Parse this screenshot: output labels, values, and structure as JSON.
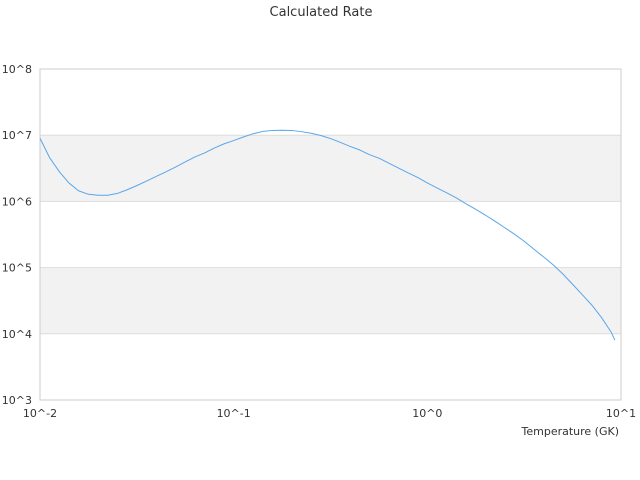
{
  "chart_data": {
    "type": "line",
    "title": "Calculated Rate",
    "xlabel": "Temperature (GK)",
    "ylabel": "",
    "x_scale": "log",
    "y_scale": "log",
    "xlim": [
      0.01,
      10
    ],
    "ylim": [
      1000,
      100000000
    ],
    "x_ticks": [
      "10^-2",
      "10^-1",
      "10^0",
      "10^1"
    ],
    "y_ticks": [
      "10^3",
      "10^4",
      "10^5",
      "10^6",
      "10^7",
      "10^8"
    ],
    "grid": "alternating horizontal bands",
    "legend": "none",
    "colors": {
      "line": "#5aa6ea",
      "band": "#f2f2f2",
      "gridline": "#dddddd"
    },
    "series": [
      {
        "x": [
          0.01,
          0.0112,
          0.0126,
          0.0141,
          0.0158,
          0.0178,
          0.02,
          0.0224,
          0.0251,
          0.0282,
          0.0316,
          0.0355,
          0.0398,
          0.0447,
          0.0501,
          0.0562,
          0.0631,
          0.0708,
          0.0794,
          0.0891,
          0.1,
          0.1122,
          0.1259,
          0.1413,
          0.1585,
          0.1778,
          0.1995,
          0.2239,
          0.2512,
          0.2818,
          0.3162,
          0.3548,
          0.3981,
          0.4467,
          0.5012,
          0.5623,
          0.631,
          0.7079,
          0.7943,
          0.8913,
          1,
          1.122,
          1.259,
          1.413,
          1.585,
          1.778,
          1.995,
          2.239,
          2.512,
          2.818,
          3.162,
          3.548,
          3.981,
          4.467,
          5.012,
          5.623,
          6.31,
          7.079,
          7.943,
          8.913,
          9.3
        ],
        "y": [
          9000000,
          4600000,
          2800000,
          1900000,
          1450000,
          1280000,
          1240000,
          1240000,
          1320000,
          1500000,
          1730000,
          2030000,
          2380000,
          2800000,
          3300000,
          3950000,
          4700000,
          5400000,
          6400000,
          7400000,
          8300000,
          9400000,
          10500000,
          11400000,
          11800000,
          11900000,
          11800000,
          11300000,
          10700000,
          9900000,
          8900000,
          7800000,
          6800000,
          6000000,
          5100000,
          4500000,
          3800000,
          3200000,
          2700000,
          2300000,
          1900000,
          1600000,
          1350000,
          1130000,
          920000,
          760000,
          620000,
          500000,
          400000,
          320000,
          250000,
          190000,
          145000,
          110000,
          80000,
          56000,
          39000,
          27000,
          17500,
          10500,
          8000
        ]
      }
    ]
  }
}
